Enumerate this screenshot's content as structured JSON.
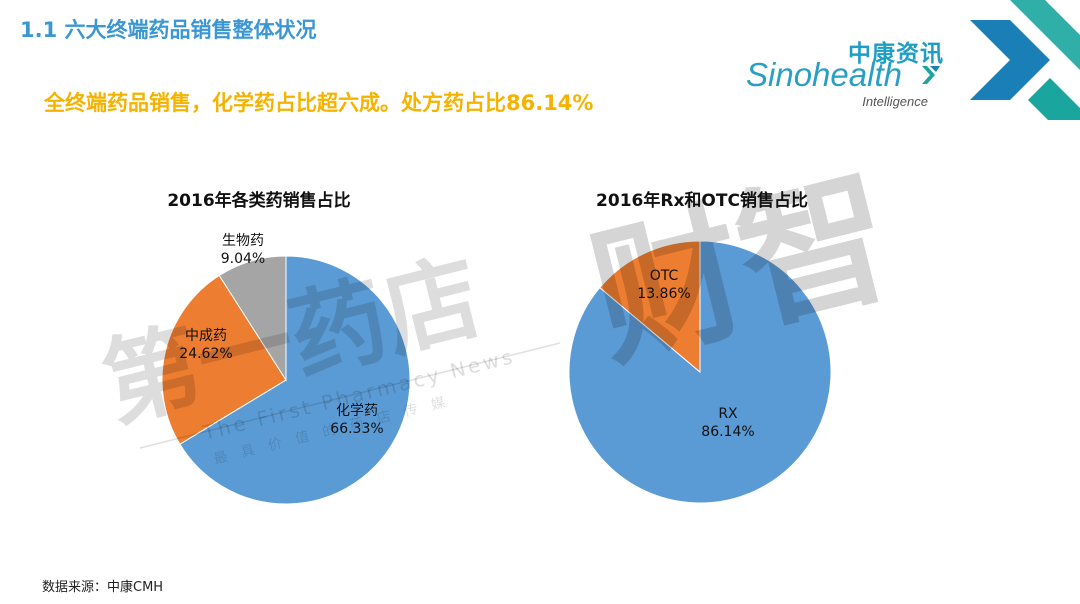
{
  "header": {
    "title": "1.1 六大终端药品销售整体状况",
    "subtitle": "全终端药品销售，化学药占比超六成。处方药占比86.14%"
  },
  "logo": {
    "cn": "中康资讯",
    "en": "Sinohealth",
    "sub": "Intelligence"
  },
  "watermark": {
    "main": "第一药店",
    "side": "财智",
    "english": "The First Pharmacy News",
    "tagline": "最具价值的药店传媒"
  },
  "colors": {
    "blue": "#5b9bd5",
    "orange": "#ed7d31",
    "gray": "#a5a5a5",
    "title_blue": "#3a97d4",
    "subtitle_gold": "#f5b300"
  },
  "chart_data": [
    {
      "type": "pie",
      "title": "2016年各类药销售占比",
      "slices": [
        {
          "name": "化学药",
          "value": 66.33,
          "label": "66.33%",
          "color": "#5b9bd5"
        },
        {
          "name": "中成药",
          "value": 24.62,
          "label": "24.62%",
          "color": "#ed7d31"
        },
        {
          "name": "生物药",
          "value": 9.04,
          "label": "9.04%",
          "color": "#a5a5a5"
        }
      ]
    },
    {
      "type": "pie",
      "title": "2016年Rx和OTC销售占比",
      "slices": [
        {
          "name": "RX",
          "value": 86.14,
          "label": "86.14%",
          "color": "#5b9bd5"
        },
        {
          "name": "OTC",
          "value": 13.86,
          "label": "13.86%",
          "color": "#ed7d31"
        }
      ]
    }
  ],
  "footer": {
    "source": "数据来源：中康CMH"
  }
}
